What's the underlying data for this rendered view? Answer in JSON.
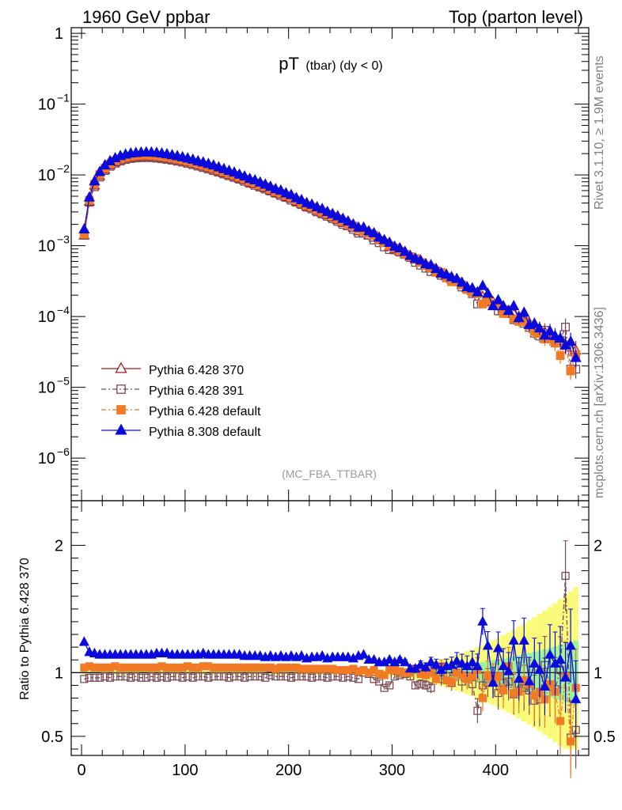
{
  "header": {
    "left": "1960 GeV ppbar",
    "right": "Top (parton level)"
  },
  "title": {
    "main": "pT",
    "sub": "(tbar) (dy < 0)"
  },
  "analysis_label": "(MC_FBA_TTBAR)",
  "side_text": {
    "rivet": "Rivet 3.1.10, ≥ 1.9M events",
    "mcplots": "mcplots.cern.ch [arXiv:1306.3436]"
  },
  "ratio_ylabel": "Ratio to Pythia 6.428 370",
  "legend": [
    {
      "label": "Pythia 6.428 370"
    },
    {
      "label": "Pythia 6.428 391"
    },
    {
      "label": "Pythia 6.428 default"
    },
    {
      "label": "Pythia 8.308 default"
    }
  ],
  "chart_data": {
    "type": "scatter",
    "xlim": [
      -10,
      490
    ],
    "x_ticks": [
      "0",
      "100",
      "200",
      "300",
      "400"
    ],
    "main": {
      "yscale": "log",
      "ylim": [
        2.5e-07,
        1.2
      ],
      "y_ticks": [
        {
          "v": 1,
          "label": "1"
        },
        {
          "v": 0.1,
          "label": "10",
          "exp": "−1"
        },
        {
          "v": 0.01,
          "label": "10",
          "exp": "−2"
        },
        {
          "v": 0.001,
          "label": "10",
          "exp": "−3"
        },
        {
          "v": 0.0001,
          "label": "10",
          "exp": "−4"
        },
        {
          "v": 1e-05,
          "label": "10",
          "exp": "−5"
        },
        {
          "v": 1e-06,
          "label": "10",
          "exp": "−6"
        }
      ]
    },
    "ratio": {
      "ylim": [
        0.35,
        2.35
      ],
      "y_ticks": [
        {
          "v": 2,
          "label": "2"
        },
        {
          "v": 1,
          "label": "1"
        },
        {
          "v": 0.5,
          "label": "0.5"
        }
      ],
      "band_note": "reference uncertainty band (green inner, yellow outer)"
    },
    "x": [
      2.5,
      7.5,
      12.5,
      17.5,
      22.5,
      27.5,
      32.5,
      37.5,
      42.5,
      47.5,
      52.5,
      57.5,
      62.5,
      67.5,
      72.5,
      77.5,
      82.5,
      87.5,
      92.5,
      97.5,
      102.5,
      107.5,
      112.5,
      117.5,
      122.5,
      127.5,
      132.5,
      137.5,
      142.5,
      147.5,
      152.5,
      157.5,
      162.5,
      167.5,
      172.5,
      177.5,
      182.5,
      187.5,
      192.5,
      197.5,
      202.5,
      207.5,
      212.5,
      217.5,
      222.5,
      227.5,
      232.5,
      237.5,
      242.5,
      247.5,
      252.5,
      257.5,
      262.5,
      267.5,
      272.5,
      277.5,
      282.5,
      287.5,
      292.5,
      297.5,
      302.5,
      307.5,
      312.5,
      317.5,
      322.5,
      327.5,
      332.5,
      337.5,
      342.5,
      347.5,
      352.5,
      357.5,
      362.5,
      367.5,
      372.5,
      377.5,
      382.5,
      387.5,
      392.5,
      397.5,
      402.5,
      407.5,
      412.5,
      417.5,
      422.5,
      427.5,
      432.5,
      437.5,
      442.5,
      447.5,
      452.5,
      457.5,
      462.5,
      467.5,
      472.5,
      477.5
    ],
    "series": [
      {
        "name": "Pythia 6.428 370",
        "color": "#a01825",
        "marker": "triangle-open",
        "line": "solid",
        "values": [
          0.0014,
          0.0042,
          0.0071,
          0.0097,
          0.0119,
          0.0137,
          0.0151,
          0.0162,
          0.017,
          0.0176,
          0.0179,
          0.0181,
          0.0182,
          0.0181,
          0.0179,
          0.0175,
          0.0171,
          0.0166,
          0.0161,
          0.0156,
          0.015,
          0.0144,
          0.0137,
          0.0131,
          0.0125,
          0.0119,
          0.0112,
          0.0106,
          0.01,
          0.0095,
          0.0089,
          0.0084,
          0.0078,
          0.0074,
          0.0069,
          0.0065,
          0.006,
          0.0056,
          0.0053,
          0.0049,
          0.0046,
          0.0042,
          0.0039,
          0.0036,
          0.0034,
          0.0031,
          0.0029,
          0.0027,
          0.0025,
          0.0023,
          0.0021,
          0.0019,
          0.0018,
          0.0016,
          0.0015,
          0.0014,
          0.0013,
          0.0012,
          0.0011,
          0.00098,
          0.0009,
          0.00083,
          0.00076,
          0.0007,
          0.00064,
          0.00058,
          0.00053,
          0.00049,
          0.00044,
          0.0004,
          0.00037,
          0.00034,
          0.00031,
          0.00028,
          0.00025,
          0.00023,
          0.00021,
          0.00019,
          0.00017,
          0.00016,
          0.00014,
          0.00013,
          0.00012,
          0.00011,
          9.98e-05,
          9.03e-05,
          8.17e-05,
          7.39e-05,
          6.68e-05,
          6.04e-05,
          5.47e-05,
          4.94e-05,
          4.47e-05,
          4.04e-05,
          3.66e-05,
          3.31e-05
        ],
        "ratio": [
          1,
          1,
          1,
          1,
          1,
          1,
          1,
          1,
          1,
          1,
          1,
          1,
          1,
          1,
          1,
          1,
          1,
          1,
          1,
          1,
          1,
          1,
          1,
          1,
          1,
          1,
          1,
          1,
          1,
          1,
          1,
          1,
          1,
          1,
          1,
          1,
          1,
          1,
          1,
          1,
          1,
          1,
          1,
          1,
          1,
          1,
          1,
          1,
          1,
          1,
          1,
          1,
          1,
          1,
          1,
          1,
          1,
          1,
          1,
          1,
          1,
          1,
          1,
          1,
          1,
          1,
          1,
          1,
          1,
          1,
          1,
          1,
          1,
          1,
          1,
          1,
          1,
          1,
          1,
          1,
          1,
          1,
          1,
          1,
          1,
          1,
          1,
          1,
          1,
          1,
          1,
          1,
          1,
          1,
          1,
          1
        ]
      },
      {
        "name": "Pythia 6.428 391",
        "color": "#7a4a55",
        "marker": "square-open",
        "line": "dash-dot",
        "values": [
          0.0014,
          0.0041,
          0.0068,
          0.0093,
          0.0115,
          0.0132,
          0.0146,
          0.0157,
          0.0165,
          0.017,
          0.0173,
          0.0174,
          0.0175,
          0.0174,
          0.0172,
          0.0169,
          0.0165,
          0.0161,
          0.0156,
          0.0151,
          0.0145,
          0.0139,
          0.0133,
          0.0127,
          0.0121,
          0.0115,
          0.0109,
          0.0103,
          0.0097,
          0.0092,
          0.0087,
          0.0081,
          0.0076,
          0.0071,
          0.0067,
          0.0063,
          0.0059,
          0.0055,
          0.0051,
          0.0048,
          0.0044,
          0.0041,
          0.0038,
          0.0035,
          0.0033,
          0.003,
          0.0028,
          0.0026,
          0.0024,
          0.0022,
          0.002,
          0.0019,
          0.0017,
          0.0015,
          0.0015,
          0.0014,
          0.0012,
          0.0011,
          0.00096,
          0.00088,
          0.00087,
          0.00081,
          0.00075,
          0.00068,
          0.00058,
          0.00053,
          0.00048,
          0.00043,
          0.00044,
          0.00038,
          0.00036,
          0.00031,
          0.00031,
          0.00026,
          0.00024,
          0.00021,
          0.00015,
          0.00017,
          0.00016,
          0.00015,
          0.00012,
          0.00012,
          0.00011,
          9e-05,
          9e-05,
          8e-05,
          7e-05,
          5.8e-05,
          5.3e-05,
          6.4e-05,
          4.9e-05,
          4.3e-05,
          4.6e-05,
          7.1e-05,
          1.8e-05,
          1.8e-05
        ],
        "ratio": [
          0.95,
          0.96,
          0.96,
          0.96,
          0.97,
          0.96,
          0.97,
          0.97,
          0.97,
          0.96,
          0.97,
          0.96,
          0.96,
          0.97,
          0.96,
          0.97,
          0.96,
          0.97,
          0.97,
          0.96,
          0.97,
          0.96,
          0.97,
          0.97,
          0.96,
          0.97,
          0.97,
          0.97,
          0.96,
          0.97,
          0.97,
          0.96,
          0.97,
          0.97,
          0.97,
          0.96,
          0.98,
          0.97,
          0.97,
          0.97,
          0.96,
          0.97,
          0.97,
          0.97,
          0.96,
          0.97,
          0.97,
          0.96,
          0.97,
          0.97,
          0.96,
          0.97,
          0.96,
          0.95,
          1.0,
          0.99,
          0.95,
          0.93,
          0.88,
          0.9,
          0.97,
          0.98,
          0.99,
          0.97,
          0.9,
          0.91,
          0.9,
          0.88,
          1.0,
          0.95,
          0.97,
          0.92,
          1.0,
          0.93,
          0.95,
          0.91,
          0.7,
          0.9,
          0.92,
          0.95,
          0.84,
          0.92,
          0.93,
          0.83,
          0.91,
          0.88,
          0.86,
          0.78,
          0.79,
          1.06,
          0.89,
          0.87,
          1.02,
          1.76,
          0.49,
          0.55
        ]
      },
      {
        "name": "Pythia 6.428 default",
        "color": "#f27a24",
        "marker": "square-filled",
        "line": "dash-dot",
        "values": [
          0.00145,
          0.0044,
          0.0074,
          0.0101,
          0.0124,
          0.0143,
          0.0158,
          0.0169,
          0.0177,
          0.0183,
          0.0187,
          0.0189,
          0.019,
          0.0189,
          0.0186,
          0.0183,
          0.0178,
          0.0173,
          0.0168,
          0.0163,
          0.0157,
          0.015,
          0.0143,
          0.0137,
          0.0131,
          0.0124,
          0.0117,
          0.011,
          0.0104,
          0.0099,
          0.0093,
          0.0087,
          0.0081,
          0.0077,
          0.0072,
          0.0068,
          0.0063,
          0.0058,
          0.0055,
          0.0051,
          0.0048,
          0.0044,
          0.004,
          0.0037,
          0.0035,
          0.0032,
          0.003,
          0.0028,
          0.0026,
          0.0024,
          0.0022,
          0.002,
          0.0019,
          0.0017,
          0.0016,
          0.0015,
          0.0014,
          0.0012,
          0.0011,
          0.001,
          0.00093,
          0.00084,
          0.00076,
          0.0007,
          0.00066,
          0.00058,
          0.00052,
          0.00049,
          0.00042,
          0.00042,
          0.00035,
          0.00031,
          0.00031,
          0.00028,
          0.00024,
          0.00022,
          0.00021,
          0.00015,
          0.00017,
          0.00015,
          0.00014,
          0.00011,
          0.000125,
          9.3e-05,
          8.5e-05,
          8.5e-05,
          7.4e-05,
          6.1e-05,
          5.7e-05,
          4.8e-05,
          5e-05,
          4.2e-05,
          2.8e-05,
          3.9e-05,
          1.7e-05,
          2.9e-05
        ],
        "ratio": [
          1.04,
          1.05,
          1.04,
          1.04,
          1.04,
          1.04,
          1.05,
          1.04,
          1.04,
          1.04,
          1.04,
          1.04,
          1.04,
          1.04,
          1.04,
          1.05,
          1.04,
          1.04,
          1.04,
          1.04,
          1.05,
          1.04,
          1.04,
          1.05,
          1.05,
          1.04,
          1.04,
          1.04,
          1.04,
          1.04,
          1.04,
          1.04,
          1.04,
          1.04,
          1.04,
          1.04,
          1.04,
          1.03,
          1.04,
          1.04,
          1.04,
          1.04,
          1.03,
          1.03,
          1.03,
          1.03,
          1.03,
          1.03,
          1.03,
          1.02,
          1.02,
          1.02,
          1.03,
          1.01,
          1.02,
          1.0,
          1.02,
          0.99,
          0.98,
          1.02,
          1.02,
          1.01,
          1.0,
          1.0,
          1.03,
          0.99,
          0.98,
          1.0,
          0.95,
          1.05,
          0.94,
          0.93,
          1.0,
          0.98,
          0.95,
          0.97,
          1.02,
          0.8,
          0.98,
          0.95,
          0.97,
          0.86,
          1.05,
          0.84,
          0.85,
          0.94,
          0.91,
          0.82,
          0.85,
          0.79,
          0.91,
          0.85,
          0.62,
          0.97,
          0.46,
          0.88
        ]
      },
      {
        "name": "Pythia 8.308 default",
        "color": "#0a0adc",
        "marker": "triangle-filled",
        "line": "solid",
        "values": [
          0.0017,
          0.0048,
          0.0081,
          0.011,
          0.0136,
          0.0156,
          0.0172,
          0.0185,
          0.0194,
          0.0201,
          0.0204,
          0.0207,
          0.0208,
          0.0207,
          0.0205,
          0.0201,
          0.0196,
          0.019,
          0.0184,
          0.0178,
          0.0171,
          0.0164,
          0.0156,
          0.015,
          0.0143,
          0.0136,
          0.0128,
          0.0121,
          0.0114,
          0.0108,
          0.0101,
          0.0095,
          0.0088,
          0.0084,
          0.0078,
          0.0073,
          0.0068,
          0.0063,
          0.006,
          0.0055,
          0.0052,
          0.0047,
          0.0044,
          0.004,
          0.0038,
          0.0035,
          0.0033,
          0.003,
          0.0028,
          0.0026,
          0.0024,
          0.0022,
          0.002,
          0.0018,
          0.0018,
          0.0016,
          0.0015,
          0.0013,
          0.0012,
          0.0011,
          0.00097,
          0.00092,
          0.00082,
          0.00072,
          0.00066,
          0.00062,
          0.00055,
          0.00053,
          0.00047,
          0.00041,
          0.00039,
          0.00036,
          0.00034,
          0.0003,
          0.00026,
          0.00025,
          0.00022,
          0.00027,
          0.00021,
          0.00014,
          0.00017,
          0.00014,
          0.00012,
          0.00014,
          9.5e-05,
          0.000113,
          7.6e-05,
          7.9e-05,
          6.8e-05,
          5.4e-05,
          6.2e-05,
          5.3e-05,
          4.9e-05,
          3.9e-05,
          4.4e-05,
          2.6e-05
        ],
        "ratio": [
          1.24,
          1.16,
          1.15,
          1.14,
          1.14,
          1.14,
          1.14,
          1.14,
          1.14,
          1.14,
          1.14,
          1.14,
          1.14,
          1.14,
          1.15,
          1.15,
          1.15,
          1.14,
          1.14,
          1.14,
          1.14,
          1.14,
          1.14,
          1.15,
          1.14,
          1.14,
          1.14,
          1.14,
          1.14,
          1.14,
          1.14,
          1.13,
          1.13,
          1.13,
          1.13,
          1.12,
          1.13,
          1.12,
          1.13,
          1.12,
          1.13,
          1.12,
          1.13,
          1.11,
          1.12,
          1.12,
          1.13,
          1.11,
          1.12,
          1.12,
          1.12,
          1.12,
          1.11,
          1.13,
          1.14,
          1.1,
          1.1,
          1.08,
          1.08,
          1.1,
          1.08,
          1.1,
          1.08,
          1.03,
          1.03,
          1.06,
          1.04,
          1.08,
          1.06,
          1.02,
          1.05,
          1.06,
          1.09,
          1.07,
          1.05,
          1.08,
          1.05,
          1.4,
          1.21,
          0.92,
          1.19,
          1.05,
          1.01,
          1.25,
          0.95,
          1.25,
          0.93,
          1.07,
          1.02,
          0.89,
          1.14,
          1.07,
          1.1,
          0.96,
          1.21,
          0.79
        ]
      }
    ]
  }
}
